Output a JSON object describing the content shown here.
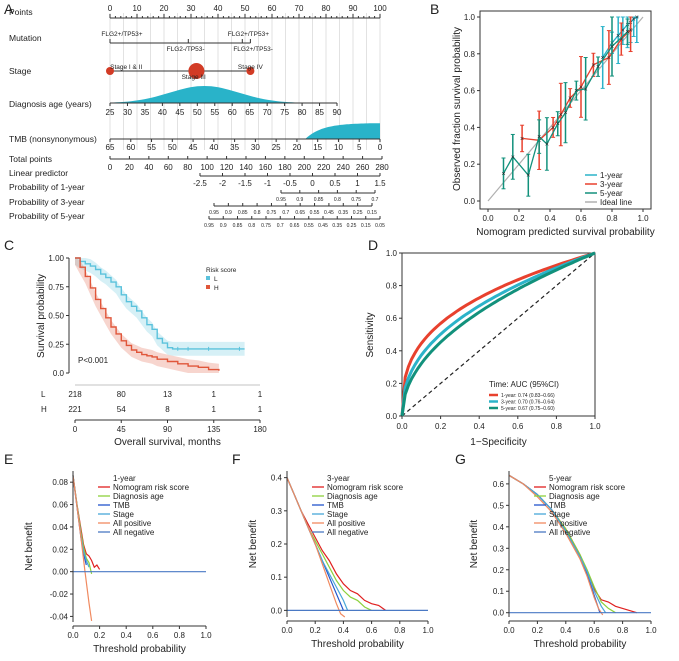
{
  "panel_letters": {
    "A": "A",
    "B": "B",
    "C": "C",
    "D": "D",
    "E": "E",
    "F": "F",
    "G": "G"
  },
  "colors": {
    "y1": "#e8412e",
    "y3": "#2bb3c9",
    "y5": "#12917c",
    "wave": "#29b3c9",
    "stage": "#d23b25",
    "risk_L": "#5bc2dc",
    "risk_H": "#e0563a",
    "nomogram": "#e02020",
    "age": "#8dd13c",
    "tmb": "#2255cc",
    "stage_line": "#49a7d9",
    "all_pos": "#f08a60",
    "all_neg": "#4a79c4"
  },
  "chart_data": [
    {
      "panel": "A",
      "type": "nomogram",
      "rows": [
        {
          "label": "Points",
          "ticks": [
            "0",
            "10",
            "20",
            "30",
            "40",
            "50",
            "60",
            "70",
            "80",
            "90",
            "100"
          ]
        },
        {
          "label": "Mutation",
          "levels": [
            "FLG2+/TP53+",
            "FLG2+/TP53+",
            "FLG2-/TP53-",
            "FLG2+/TP53-"
          ]
        },
        {
          "label": "Stage",
          "levels": [
            "Stage I & II",
            "Stage III",
            "Stage IV"
          ]
        },
        {
          "label": "Diagnosis age (years)",
          "ticks": [
            "25",
            "30",
            "35",
            "40",
            "45",
            "50",
            "55",
            "60",
            "65",
            "70",
            "75",
            "80",
            "85",
            "90"
          ]
        },
        {
          "label": "TMB (nonsynonymous)",
          "ticks": [
            "65",
            "60",
            "55",
            "50",
            "45",
            "40",
            "35",
            "30",
            "25",
            "20",
            "15",
            "10",
            "5",
            "0"
          ]
        },
        {
          "label": "Total points",
          "ticks": [
            "0",
            "20",
            "40",
            "60",
            "80",
            "100",
            "120",
            "140",
            "160",
            "180",
            "200",
            "220",
            "240",
            "260",
            "280"
          ]
        },
        {
          "label": "Linear predictor",
          "ticks": [
            "-2.5",
            "-2",
            "-1.5",
            "-1",
            "-0.5",
            "0",
            "0.5",
            "1",
            "1.5"
          ]
        },
        {
          "label": "Probability of 1-year",
          "ticks": [
            "0.95",
            "0.9",
            "0.85",
            "0.8",
            "0.75",
            "0.7"
          ]
        },
        {
          "label": "Probability of 3-year",
          "ticks": [
            "0.95",
            "0.9",
            "0.85",
            "0.8",
            "0.75",
            "0.7",
            "0.65",
            "0.55",
            "0.45",
            "0.35",
            "0.25",
            "0.15"
          ]
        },
        {
          "label": "Probability of 5-year",
          "ticks": [
            "0.95",
            "0.9",
            "0.85",
            "0.8",
            "0.75",
            "0.7",
            "0.65",
            "0.55",
            "0.45",
            "0.35",
            "0.25",
            "0.15",
            "0.05"
          ]
        }
      ]
    },
    {
      "panel": "B",
      "type": "line",
      "xlabel": "Nomogram predicted survival probability",
      "ylabel": "Observed fraction survival probability",
      "xlim": [
        0,
        1
      ],
      "ylim": [
        0,
        1
      ],
      "x_ticks": [
        "0.0",
        "0.2",
        "0.4",
        "0.6",
        "0.8",
        "1.0"
      ],
      "y_ticks": [
        "0.0",
        "0.2",
        "0.4",
        "0.6",
        "0.8",
        "1.0"
      ],
      "legend": [
        "1-year",
        "3-year",
        "5-year",
        "Ideal line"
      ],
      "series": [
        {
          "name": "1-year",
          "x": [
            0.74,
            0.8,
            0.84,
            0.87,
            0.9,
            0.92,
            0.94,
            0.96
          ],
          "y": [
            0.78,
            0.86,
            0.9,
            0.93,
            0.96,
            0.97,
            0.99,
            1.0
          ]
        },
        {
          "name": "3-year",
          "x": [
            0.22,
            0.33,
            0.42,
            0.47,
            0.53,
            0.6,
            0.68,
            0.78,
            0.86,
            0.92
          ],
          "y": [
            0.34,
            0.33,
            0.4,
            0.47,
            0.56,
            0.62,
            0.74,
            0.78,
            0.88,
            0.93
          ]
        },
        {
          "name": "5-year",
          "x": [
            0.1,
            0.16,
            0.26,
            0.33,
            0.38,
            0.45,
            0.5,
            0.57,
            0.63,
            0.71,
            0.8,
            0.9
          ],
          "y": [
            0.15,
            0.24,
            0.14,
            0.35,
            0.31,
            0.42,
            0.48,
            0.6,
            0.61,
            0.73,
            0.84,
            0.92
          ]
        }
      ]
    },
    {
      "panel": "C",
      "type": "line",
      "legend_title": "Risk score",
      "xlabel": "Overall survival, months",
      "ylabel": "Survival probability",
      "xlim": [
        0,
        180
      ],
      "ylim": [
        0,
        1
      ],
      "x_ticks": [
        "0",
        "45",
        "90",
        "135",
        "180"
      ],
      "y_ticks": [
        "0.0",
        "0.25",
        "0.50",
        "0.75",
        "1.00"
      ],
      "p_value": "P<0.001",
      "risk_table": {
        "L": [
          "218",
          "80",
          "13",
          "1",
          "1"
        ],
        "H": [
          "221",
          "54",
          "8",
          "1",
          "1"
        ]
      },
      "series": [
        {
          "name": "L",
          "x": [
            0,
            5,
            10,
            15,
            20,
            25,
            30,
            35,
            40,
            45,
            50,
            55,
            60,
            65,
            70,
            75,
            80,
            85,
            90,
            95,
            100,
            110,
            120,
            130,
            135,
            150,
            165
          ],
          "y": [
            1.0,
            0.97,
            0.95,
            0.93,
            0.9,
            0.86,
            0.83,
            0.79,
            0.75,
            0.68,
            0.62,
            0.58,
            0.54,
            0.48,
            0.42,
            0.38,
            0.3,
            0.26,
            0.22,
            0.21,
            0.21,
            0.21,
            0.21,
            0.21,
            0.21,
            0.21,
            0.21
          ]
        },
        {
          "name": "H",
          "x": [
            0,
            5,
            10,
            15,
            20,
            25,
            30,
            35,
            40,
            45,
            50,
            55,
            60,
            65,
            70,
            75,
            80,
            90,
            100,
            110,
            120,
            130,
            140
          ],
          "y": [
            1.0,
            0.92,
            0.84,
            0.74,
            0.64,
            0.56,
            0.48,
            0.4,
            0.34,
            0.28,
            0.24,
            0.2,
            0.18,
            0.16,
            0.15,
            0.14,
            0.12,
            0.1,
            0.08,
            0.06,
            0.05,
            0.03,
            0.02
          ]
        }
      ]
    },
    {
      "panel": "D",
      "type": "line",
      "xlabel": "1−Specificity",
      "ylabel": "Sensitivity",
      "xlim": [
        0,
        1
      ],
      "ylim": [
        0,
        1
      ],
      "x_ticks": [
        "0.0",
        "0.2",
        "0.4",
        "0.6",
        "0.8",
        "1.0"
      ],
      "y_ticks": [
        "0.0",
        "0.2",
        "0.4",
        "0.6",
        "0.8",
        "1.0"
      ],
      "legend_title": "Time: AUC (95%CI)",
      "series": [
        {
          "name": "1-year: 0.74 (0.83–0.66)",
          "auc": 0.74
        },
        {
          "name": "3-year: 0.70 (0.76–0.64)",
          "auc": 0.7
        },
        {
          "name": "5-year: 0.67 (0.75–0.60)",
          "auc": 0.67
        }
      ]
    },
    {
      "panel": "E",
      "type": "line",
      "title": "1-year",
      "xlabel": "Threshold probability",
      "ylabel": "Net benefit",
      "xlim": [
        0,
        1
      ],
      "ylim": [
        -0.045,
        0.09
      ],
      "x_ticks": [
        "0.0",
        "0.2",
        "0.4",
        "0.6",
        "0.8",
        "1.0"
      ],
      "y_ticks": [
        "-0.04",
        "-0.02",
        "0.00",
        "0.02",
        "0.04",
        "0.06",
        "0.08"
      ],
      "legend": [
        "Nomogram risk score",
        "Diagnosis age",
        "TMB",
        "Stage",
        "All positive",
        "All negative"
      ],
      "series": [
        {
          "name": "Nomogram risk score",
          "x": [
            0,
            0.03,
            0.06,
            0.08,
            0.1,
            0.12,
            0.14,
            0.16,
            0.18,
            0.2
          ],
          "y": [
            0.086,
            0.06,
            0.038,
            0.024,
            0.016,
            0.014,
            0.01,
            0.004,
            0.006,
            0.002
          ]
        },
        {
          "name": "Diagnosis age",
          "x": [
            0,
            0.03,
            0.06,
            0.08,
            0.1,
            0.12,
            0.14
          ],
          "y": [
            0.086,
            0.06,
            0.035,
            0.022,
            0.012,
            0.008,
            -0.002
          ]
        },
        {
          "name": "TMB",
          "x": [
            0,
            0.03,
            0.06,
            0.08,
            0.1
          ],
          "y": [
            0.086,
            0.058,
            0.03,
            0.016,
            0.006
          ]
        },
        {
          "name": "Stage",
          "x": [
            0,
            0.03,
            0.06,
            0.08,
            0.1,
            0.12
          ],
          "y": [
            0.086,
            0.058,
            0.032,
            0.018,
            0.01,
            0.004
          ]
        },
        {
          "name": "All positive",
          "x": [
            0,
            0.03,
            0.06,
            0.09,
            0.12,
            0.14
          ],
          "y": [
            0.086,
            0.058,
            0.03,
            0.0,
            -0.028,
            -0.044
          ]
        },
        {
          "name": "All negative",
          "x": [
            0,
            1
          ],
          "y": [
            0,
            0
          ]
        }
      ]
    },
    {
      "panel": "F",
      "type": "line",
      "title": "3-year",
      "xlabel": "Threshold probability",
      "ylabel": "Net benefit",
      "xlim": [
        0,
        1
      ],
      "ylim": [
        -0.02,
        0.42
      ],
      "x_ticks": [
        "0.0",
        "0.2",
        "0.4",
        "0.6",
        "0.8",
        "1.0"
      ],
      "y_ticks": [
        "0.0",
        "0.1",
        "0.2",
        "0.3",
        "0.4"
      ],
      "legend": [
        "Nomogram risk score",
        "Diagnosis age",
        "TMB",
        "Stage",
        "All positive",
        "All negative"
      ],
      "series": [
        {
          "name": "Nomogram risk score",
          "x": [
            0,
            0.05,
            0.1,
            0.15,
            0.2,
            0.25,
            0.3,
            0.35,
            0.4,
            0.45,
            0.5,
            0.55,
            0.6,
            0.65,
            0.7
          ],
          "y": [
            0.4,
            0.35,
            0.3,
            0.26,
            0.22,
            0.18,
            0.15,
            0.11,
            0.08,
            0.06,
            0.05,
            0.03,
            0.02,
            0.015,
            0.0
          ]
        },
        {
          "name": "Diagnosis age",
          "x": [
            0,
            0.05,
            0.1,
            0.15,
            0.2,
            0.25,
            0.3,
            0.35,
            0.4,
            0.45,
            0.5,
            0.55,
            0.6
          ],
          "y": [
            0.4,
            0.35,
            0.3,
            0.25,
            0.21,
            0.17,
            0.13,
            0.09,
            0.06,
            0.04,
            0.03,
            0.01,
            0.0
          ]
        },
        {
          "name": "TMB",
          "x": [
            0,
            0.05,
            0.1,
            0.15,
            0.2,
            0.25,
            0.3,
            0.35,
            0.38,
            0.4
          ],
          "y": [
            0.4,
            0.35,
            0.3,
            0.25,
            0.2,
            0.15,
            0.1,
            0.05,
            0.02,
            0.0
          ]
        },
        {
          "name": "Stage",
          "x": [
            0,
            0.05,
            0.1,
            0.15,
            0.2,
            0.25,
            0.3,
            0.35,
            0.4,
            0.43
          ],
          "y": [
            0.4,
            0.35,
            0.3,
            0.25,
            0.2,
            0.15,
            0.11,
            0.07,
            0.03,
            0.0
          ]
        },
        {
          "name": "All positive",
          "x": [
            0,
            0.05,
            0.1,
            0.15,
            0.2,
            0.25,
            0.3,
            0.35,
            0.38,
            0.41
          ],
          "y": [
            0.4,
            0.35,
            0.3,
            0.25,
            0.2,
            0.14,
            0.08,
            0.02,
            -0.01,
            -0.02
          ]
        },
        {
          "name": "All negative",
          "x": [
            0,
            1
          ],
          "y": [
            0,
            0
          ]
        }
      ]
    },
    {
      "panel": "G",
      "type": "line",
      "title": "5-year",
      "xlabel": "Threshold probability",
      "ylabel": "Net benefit",
      "xlim": [
        0,
        1
      ],
      "ylim": [
        -0.02,
        0.66
      ],
      "x_ticks": [
        "0.0",
        "0.2",
        "0.4",
        "0.6",
        "0.8",
        "1.0"
      ],
      "y_ticks": [
        "0.0",
        "0.1",
        "0.2",
        "0.3",
        "0.4",
        "0.5",
        "0.6"
      ],
      "legend": [
        "Nomogram risk score",
        "Diagnosis age",
        "TMB",
        "Stage",
        "All positive",
        "All negative"
      ],
      "series": [
        {
          "name": "Nomogram risk score",
          "x": [
            0,
            0.1,
            0.2,
            0.3,
            0.4,
            0.5,
            0.55,
            0.6,
            0.65,
            0.7,
            0.75,
            0.8,
            0.85,
            0.9
          ],
          "y": [
            0.64,
            0.6,
            0.55,
            0.48,
            0.39,
            0.27,
            0.19,
            0.11,
            0.06,
            0.05,
            0.03,
            0.02,
            0.01,
            0.0
          ]
        },
        {
          "name": "Diagnosis age",
          "x": [
            0,
            0.1,
            0.2,
            0.3,
            0.4,
            0.5,
            0.55,
            0.6,
            0.65,
            0.7,
            0.75
          ],
          "y": [
            0.64,
            0.6,
            0.55,
            0.48,
            0.39,
            0.27,
            0.2,
            0.12,
            0.05,
            0.02,
            0.0
          ]
        },
        {
          "name": "TMB",
          "x": [
            0,
            0.1,
            0.2,
            0.3,
            0.4,
            0.5,
            0.55,
            0.6,
            0.64
          ],
          "y": [
            0.64,
            0.6,
            0.55,
            0.48,
            0.38,
            0.26,
            0.18,
            0.08,
            0.0
          ]
        },
        {
          "name": "Stage",
          "x": [
            0,
            0.1,
            0.2,
            0.3,
            0.4,
            0.5,
            0.55,
            0.6,
            0.65,
            0.68
          ],
          "y": [
            0.64,
            0.6,
            0.55,
            0.48,
            0.38,
            0.26,
            0.19,
            0.1,
            0.03,
            0.0
          ]
        },
        {
          "name": "All positive",
          "x": [
            0,
            0.1,
            0.2,
            0.3,
            0.4,
            0.5,
            0.55,
            0.6,
            0.63,
            0.66
          ],
          "y": [
            0.64,
            0.6,
            0.54,
            0.47,
            0.37,
            0.25,
            0.17,
            0.07,
            0.02,
            -0.01
          ]
        },
        {
          "name": "All negative",
          "x": [
            0,
            1
          ],
          "y": [
            0,
            0
          ]
        }
      ]
    }
  ]
}
